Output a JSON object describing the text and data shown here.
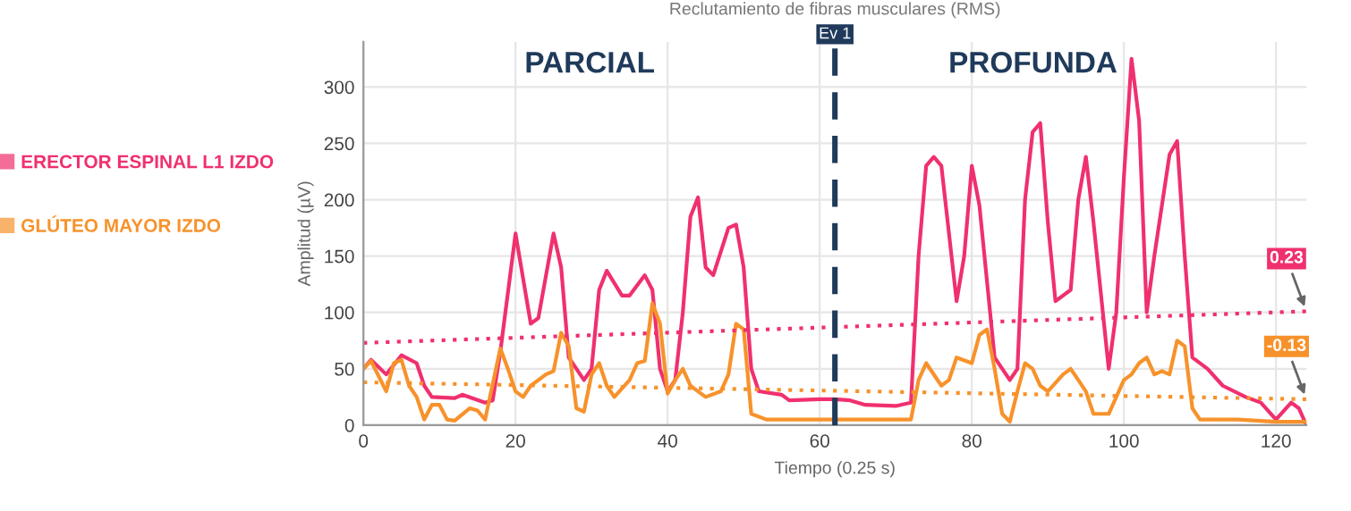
{
  "chart_data": {
    "type": "line",
    "title": "Reclutamiento de fibras musculares (RMS)",
    "xlabel": "Tiempo (0.25 s)",
    "ylabel": "Amplitud (µV)",
    "xlim": [
      0,
      124
    ],
    "ylim": [
      0,
      340
    ],
    "xticks": [
      0,
      20,
      40,
      60,
      80,
      100,
      120
    ],
    "yticks": [
      0,
      50,
      100,
      150,
      200,
      250,
      300
    ],
    "grid": true,
    "legend": "left",
    "line_style": "solid",
    "marker": "none",
    "series": [
      {
        "name": "ERECTOR ESPINAL L1 IZDO",
        "color": "#f0306e",
        "x": [
          0,
          1,
          3,
          5,
          7,
          8,
          9,
          12,
          13,
          16,
          17,
          18,
          20,
          22,
          23,
          25,
          26,
          27,
          29,
          30,
          31,
          32,
          34,
          35,
          37,
          38,
          39,
          40,
          41,
          42,
          43,
          44,
          45,
          46,
          48,
          49,
          50,
          51,
          52,
          55,
          56,
          60,
          62,
          64,
          66,
          70,
          72,
          73,
          74,
          75,
          76,
          78,
          79,
          80,
          81,
          83,
          85,
          86,
          87,
          88,
          89,
          90,
          91,
          93,
          94,
          95,
          96,
          98,
          99,
          100,
          101,
          102,
          103,
          104,
          106,
          107,
          108,
          109,
          111,
          113,
          116,
          118,
          120,
          122,
          123,
          124
        ],
        "values": [
          50,
          58,
          45,
          62,
          55,
          35,
          25,
          24,
          27,
          20,
          22,
          65,
          170,
          90,
          95,
          170,
          140,
          60,
          40,
          50,
          120,
          137,
          115,
          115,
          133,
          120,
          50,
          30,
          40,
          100,
          185,
          202,
          140,
          133,
          175,
          178,
          140,
          50,
          30,
          27,
          22,
          23,
          23,
          22,
          18,
          17,
          20,
          150,
          230,
          238,
          230,
          110,
          150,
          230,
          195,
          60,
          40,
          50,
          200,
          260,
          268,
          180,
          110,
          120,
          200,
          238,
          180,
          50,
          100,
          220,
          325,
          270,
          100,
          150,
          240,
          252,
          150,
          60,
          50,
          35,
          25,
          20,
          5,
          20,
          15,
          0
        ]
      },
      {
        "name": "GLÚTEO MAYOR IZDO",
        "color": "#f7922b",
        "x": [
          0,
          1,
          3,
          4,
          5,
          6,
          7,
          8,
          9,
          10,
          11,
          12,
          14,
          15,
          16,
          18,
          19,
          20,
          21,
          22,
          24,
          25,
          26,
          27,
          28,
          29,
          30,
          31,
          32,
          33,
          35,
          36,
          37,
          38,
          39,
          40,
          41,
          42,
          43,
          44,
          45,
          47,
          48,
          49,
          50,
          51,
          53,
          60,
          70,
          72,
          73,
          74,
          76,
          77,
          78,
          80,
          81,
          82,
          83,
          84,
          85,
          86,
          87,
          88,
          89,
          90,
          92,
          93,
          94,
          95,
          96,
          98,
          100,
          101,
          102,
          103,
          104,
          105,
          106,
          107,
          108,
          109,
          110,
          115,
          120,
          124
        ],
        "values": [
          50,
          57,
          30,
          55,
          58,
          35,
          25,
          5,
          18,
          18,
          5,
          4,
          15,
          13,
          5,
          68,
          50,
          30,
          25,
          35,
          45,
          48,
          82,
          70,
          15,
          12,
          45,
          55,
          35,
          25,
          40,
          55,
          57,
          108,
          90,
          28,
          40,
          50,
          35,
          30,
          25,
          30,
          45,
          90,
          85,
          10,
          5,
          5,
          5,
          5,
          40,
          55,
          35,
          40,
          60,
          55,
          80,
          85,
          50,
          10,
          3,
          30,
          55,
          50,
          35,
          30,
          45,
          50,
          40,
          30,
          10,
          10,
          40,
          45,
          55,
          60,
          45,
          48,
          45,
          75,
          70,
          15,
          5,
          5,
          3,
          3
        ]
      },
      {
        "type": "line",
        "line_style": "dotted",
        "color": "#f0306e",
        "x": [
          0,
          124
        ],
        "values": [
          73,
          101
        ]
      },
      {
        "type": "line",
        "line_style": "dotted",
        "color": "#f7922b",
        "x": [
          0,
          124
        ],
        "values": [
          38,
          23
        ]
      }
    ],
    "ref_lines": [
      {
        "axis": "x",
        "value": 62,
        "label": "Ev 1",
        "color": "#1f3a5a",
        "line_style": "dashed"
      }
    ],
    "annotations": [
      "PARCIAL",
      "PROFUNDA",
      {
        "text": "0.23",
        "x": 124,
        "y": 101
      },
      {
        "text": "-0.13",
        "x": 124,
        "y": 23
      }
    ]
  }
}
